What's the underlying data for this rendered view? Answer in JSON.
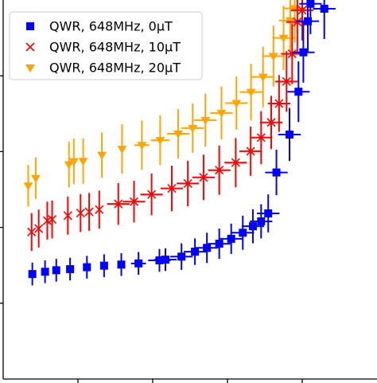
{
  "chart_data": {
    "type": "scatter",
    "title": "",
    "xlabel": "",
    "ylabel": "",
    "xlim": [
      0.0,
      1.0
    ],
    "ylim": [
      0.0,
      1.0
    ],
    "grid": false,
    "legend_position": "top-left",
    "series": [
      {
        "name": "QWR, 648MHz, 0μT",
        "color": "#0000ff",
        "marker": "square",
        "points": [
          {
            "x": 0.078,
            "y": 0.277,
            "xerr": 0.0,
            "yerr": 0.03
          },
          {
            "x": 0.112,
            "y": 0.283,
            "xerr": 0.0,
            "yerr": 0.03
          },
          {
            "x": 0.142,
            "y": 0.287,
            "xerr": 0.0,
            "yerr": 0.03
          },
          {
            "x": 0.179,
            "y": 0.29,
            "xerr": 0.0,
            "yerr": 0.03
          },
          {
            "x": 0.224,
            "y": 0.295,
            "xerr": 0.0,
            "yerr": 0.03
          },
          {
            "x": 0.27,
            "y": 0.299,
            "xerr": 0.0,
            "yerr": 0.03
          },
          {
            "x": 0.316,
            "y": 0.302,
            "xerr": 0.0,
            "yerr": 0.03
          },
          {
            "x": 0.362,
            "y": 0.305,
            "xerr": 0.02,
            "yerr": 0.03
          },
          {
            "x": 0.418,
            "y": 0.313,
            "xerr": 0.03,
            "yerr": 0.03
          },
          {
            "x": 0.434,
            "y": 0.315,
            "xerr": 0.03,
            "yerr": 0.03
          },
          {
            "x": 0.477,
            "y": 0.323,
            "xerr": 0.03,
            "yerr": 0.035
          },
          {
            "x": 0.513,
            "y": 0.336,
            "xerr": 0.03,
            "yerr": 0.035
          },
          {
            "x": 0.545,
            "y": 0.346,
            "xerr": 0.03,
            "yerr": 0.04
          },
          {
            "x": 0.578,
            "y": 0.357,
            "xerr": 0.03,
            "yerr": 0.04
          },
          {
            "x": 0.61,
            "y": 0.37,
            "xerr": 0.03,
            "yerr": 0.04
          },
          {
            "x": 0.641,
            "y": 0.386,
            "xerr": 0.03,
            "yerr": 0.045
          },
          {
            "x": 0.668,
            "y": 0.403,
            "xerr": 0.03,
            "yerr": 0.045
          },
          {
            "x": 0.69,
            "y": 0.416,
            "xerr": 0.03,
            "yerr": 0.045
          },
          {
            "x": 0.709,
            "y": 0.437,
            "xerr": 0.03,
            "yerr": 0.05
          },
          {
            "x": 0.731,
            "y": 0.545,
            "xerr": 0.03,
            "yerr": 0.06
          },
          {
            "x": 0.766,
            "y": 0.645,
            "xerr": 0.03,
            "yerr": 0.07
          },
          {
            "x": 0.79,
            "y": 0.758,
            "xerr": 0.03,
            "yerr": 0.08
          },
          {
            "x": 0.803,
            "y": 0.862,
            "xerr": 0.03,
            "yerr": 0.08
          },
          {
            "x": 0.815,
            "y": 0.944,
            "xerr": 0.03,
            "yerr": 0.08
          },
          {
            "x": 0.822,
            "y": 0.99,
            "xerr": 0.03,
            "yerr": 0.08
          },
          {
            "x": 0.859,
            "y": 0.977,
            "xerr": 0.03,
            "yerr": 0.08
          }
        ]
      },
      {
        "name": "QWR, 648MHz, 10μT",
        "color": "#ff0000",
        "marker": "x",
        "points": [
          {
            "x": 0.076,
            "y": 0.388,
            "xerr": 0.0,
            "yerr": 0.05
          },
          {
            "x": 0.095,
            "y": 0.397,
            "xerr": 0.0,
            "yerr": 0.05
          },
          {
            "x": 0.118,
            "y": 0.418,
            "xerr": 0.0,
            "yerr": 0.05
          },
          {
            "x": 0.131,
            "y": 0.421,
            "xerr": 0.0,
            "yerr": 0.05
          },
          {
            "x": 0.173,
            "y": 0.431,
            "xerr": 0.0,
            "yerr": 0.05
          },
          {
            "x": 0.207,
            "y": 0.438,
            "xerr": 0.0,
            "yerr": 0.05
          },
          {
            "x": 0.23,
            "y": 0.441,
            "xerr": 0.0,
            "yerr": 0.05
          },
          {
            "x": 0.257,
            "y": 0.447,
            "xerr": 0.0,
            "yerr": 0.05
          },
          {
            "x": 0.308,
            "y": 0.462,
            "xerr": 0.03,
            "yerr": 0.055
          },
          {
            "x": 0.35,
            "y": 0.468,
            "xerr": 0.03,
            "yerr": 0.055
          },
          {
            "x": 0.397,
            "y": 0.487,
            "xerr": 0.03,
            "yerr": 0.055
          },
          {
            "x": 0.451,
            "y": 0.503,
            "xerr": 0.03,
            "yerr": 0.06
          },
          {
            "x": 0.494,
            "y": 0.516,
            "xerr": 0.03,
            "yerr": 0.06
          },
          {
            "x": 0.536,
            "y": 0.532,
            "xerr": 0.03,
            "yerr": 0.06
          },
          {
            "x": 0.578,
            "y": 0.551,
            "xerr": 0.03,
            "yerr": 0.065
          },
          {
            "x": 0.622,
            "y": 0.571,
            "xerr": 0.03,
            "yerr": 0.065
          },
          {
            "x": 0.662,
            "y": 0.601,
            "xerr": 0.03,
            "yerr": 0.065
          },
          {
            "x": 0.69,
            "y": 0.637,
            "xerr": 0.03,
            "yerr": 0.07
          },
          {
            "x": 0.717,
            "y": 0.677,
            "xerr": 0.03,
            "yerr": 0.07
          },
          {
            "x": 0.738,
            "y": 0.727,
            "xerr": 0.03,
            "yerr": 0.075
          },
          {
            "x": 0.758,
            "y": 0.785,
            "xerr": 0.03,
            "yerr": 0.08
          },
          {
            "x": 0.773,
            "y": 0.858,
            "xerr": 0.03,
            "yerr": 0.08
          },
          {
            "x": 0.787,
            "y": 0.942,
            "xerr": 0.03,
            "yerr": 0.08
          },
          {
            "x": 0.8,
            "y": 0.973,
            "xerr": 0.03,
            "yerr": 0.08
          }
        ]
      },
      {
        "name": "QWR, 648MHz, 20μT",
        "color": "#ffa500",
        "marker": "triangle-down",
        "points": [
          {
            "x": 0.067,
            "y": 0.51,
            "xerr": 0.0,
            "yerr": 0.055
          },
          {
            "x": 0.087,
            "y": 0.53,
            "xerr": 0.0,
            "yerr": 0.055
          },
          {
            "x": 0.176,
            "y": 0.566,
            "xerr": 0.0,
            "yerr": 0.06
          },
          {
            "x": 0.189,
            "y": 0.574,
            "xerr": 0.0,
            "yerr": 0.06
          },
          {
            "x": 0.214,
            "y": 0.575,
            "xerr": 0.0,
            "yerr": 0.06
          },
          {
            "x": 0.264,
            "y": 0.591,
            "xerr": 0.0,
            "yerr": 0.06
          },
          {
            "x": 0.318,
            "y": 0.607,
            "xerr": 0.0,
            "yerr": 0.065
          },
          {
            "x": 0.371,
            "y": 0.617,
            "xerr": 0.02,
            "yerr": 0.065
          },
          {
            "x": 0.42,
            "y": 0.63,
            "xerr": 0.025,
            "yerr": 0.065
          },
          {
            "x": 0.468,
            "y": 0.647,
            "xerr": 0.03,
            "yerr": 0.065
          },
          {
            "x": 0.507,
            "y": 0.662,
            "xerr": 0.03,
            "yerr": 0.065
          },
          {
            "x": 0.541,
            "y": 0.683,
            "xerr": 0.03,
            "yerr": 0.07
          },
          {
            "x": 0.584,
            "y": 0.702,
            "xerr": 0.03,
            "yerr": 0.07
          },
          {
            "x": 0.624,
            "y": 0.728,
            "xerr": 0.03,
            "yerr": 0.07
          },
          {
            "x": 0.663,
            "y": 0.757,
            "xerr": 0.03,
            "yerr": 0.075
          },
          {
            "x": 0.695,
            "y": 0.797,
            "xerr": 0.03,
            "yerr": 0.08
          },
          {
            "x": 0.723,
            "y": 0.852,
            "xerr": 0.03,
            "yerr": 0.08
          },
          {
            "x": 0.75,
            "y": 0.9,
            "xerr": 0.03,
            "yerr": 0.085
          },
          {
            "x": 0.768,
            "y": 0.946,
            "xerr": 0.03,
            "yerr": 0.09
          },
          {
            "x": 0.78,
            "y": 0.978,
            "xerr": 0.03,
            "yerr": 0.09
          }
        ]
      }
    ]
  }
}
